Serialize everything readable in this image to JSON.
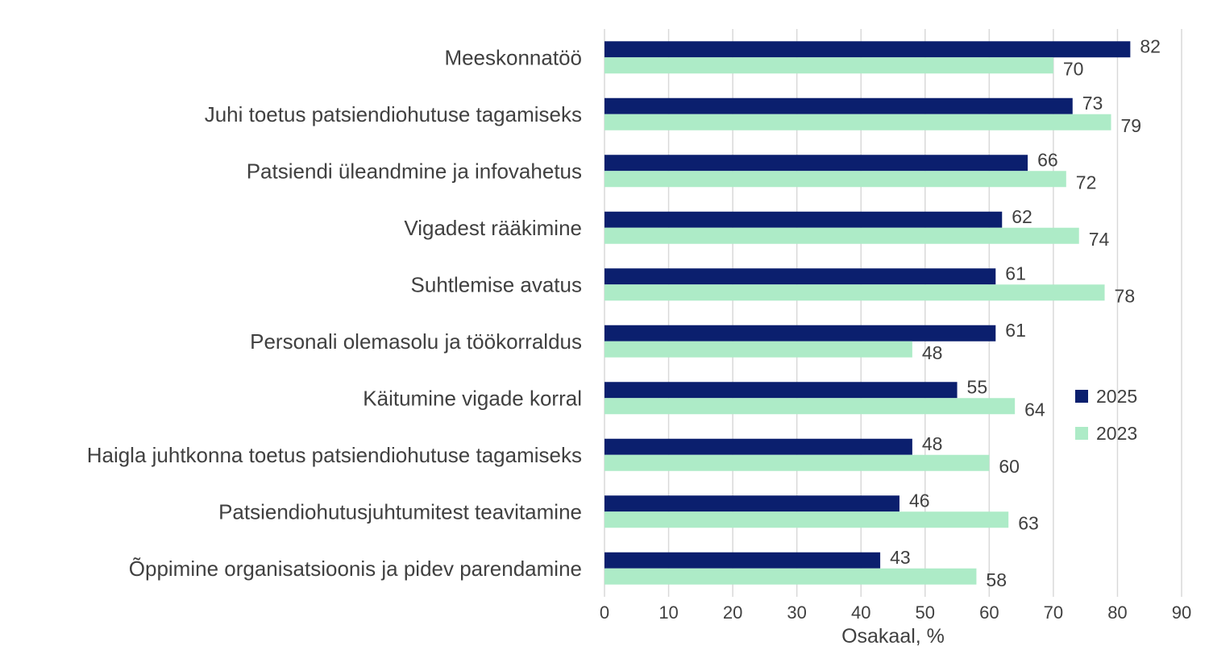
{
  "chart_data": {
    "type": "bar",
    "orientation": "horizontal",
    "categories": [
      "Meeskonnatöö",
      "Juhi toetus patsiendiohutuse tagamiseks",
      "Patsiendi üleandmine ja infovahetus",
      "Vigadest rääkimine",
      "Suhtlemise avatus",
      "Personali olemasolu ja töökorraldus",
      "Käitumine vigade korral",
      "Haigla juhtkonna toetus patsiendiohutuse tagamiseks",
      "Patsiendiohutusjuhtumitest teavitamine",
      "Õppimine organisatsioonis ja pidev parendamine"
    ],
    "series": [
      {
        "name": "2025",
        "color": "#0b1f6e",
        "values": [
          82,
          73,
          66,
          62,
          61,
          61,
          55,
          48,
          46,
          43
        ]
      },
      {
        "name": "2023",
        "color": "#adebc7",
        "values": [
          70,
          79,
          72,
          74,
          78,
          48,
          64,
          60,
          63,
          58
        ]
      }
    ],
    "xlabel": "Osakaal, %",
    "ylabel": "",
    "xlim": [
      0,
      90
    ],
    "xticks": [
      "0",
      "10",
      "20",
      "30",
      "40",
      "50",
      "60",
      "70",
      "80",
      "90"
    ],
    "grid": "vertical",
    "legend_position": "right"
  }
}
